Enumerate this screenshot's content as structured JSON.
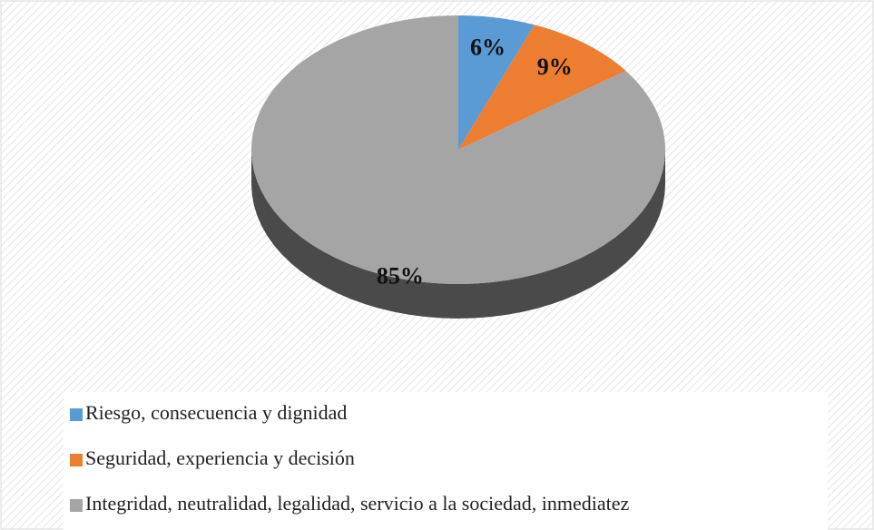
{
  "chart_data": {
    "type": "pie",
    "categories": [
      "Riesgo, consecuencia y dignidad",
      "Seguridad, experiencia y decisión",
      "Integridad, neutralidad, legalidad, servicio a la sociedad, inmediatez"
    ],
    "values": [
      6,
      9,
      85
    ],
    "value_labels": [
      "6%",
      "9%",
      "85%"
    ],
    "colors": [
      "#5b9bd5",
      "#ed7d31",
      "#a5a5a5"
    ],
    "legend": "bottom"
  }
}
